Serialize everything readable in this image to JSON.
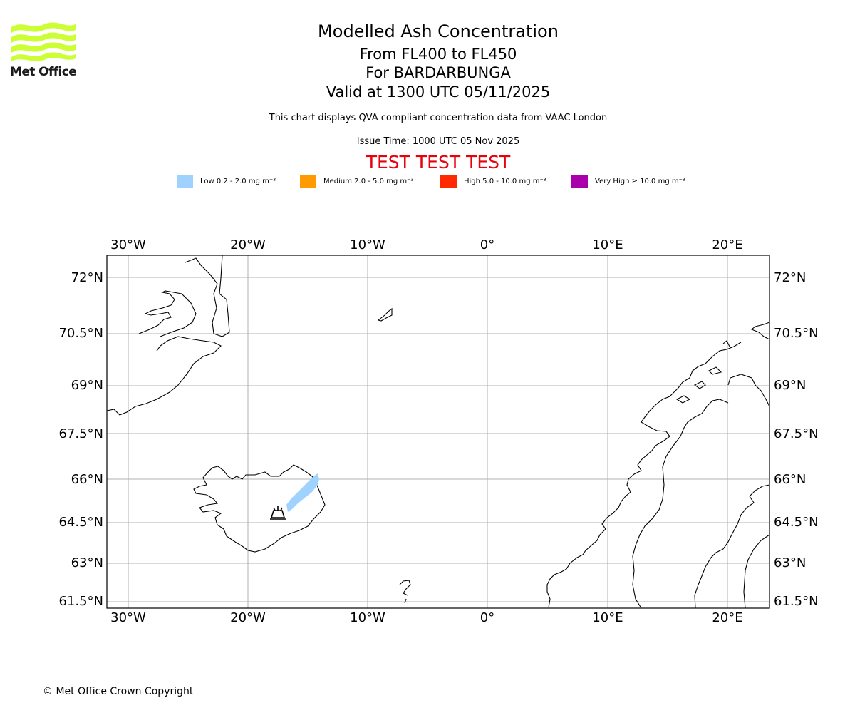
{
  "logo": {
    "text": "Met Office",
    "icon": "met-office-wave-logo"
  },
  "title": {
    "main": "Modelled Ash Concentration",
    "levels": "From FL400 to FL450",
    "volcano": "For BARDARBUNGA",
    "valid": "Valid at 1300 UTC 05/11/2025"
  },
  "subtitle": "This chart displays QVA compliant concentration data from VAAC London",
  "issue_time": "Issue Time: 1000 UTC 05 Nov 2025",
  "test_banner": "TEST TEST TEST",
  "legend": [
    {
      "label": "Low 0.2 - 2.0 mg m⁻³",
      "color": "#a0d2ff"
    },
    {
      "label": "Medium 2.0 - 5.0 mg m⁻³",
      "color": "#ff9a00"
    },
    {
      "label": "High 5.0 - 10.0 mg m⁻³",
      "color": "#ff2a00"
    },
    {
      "label": "Very High ≥ 10.0 mg m⁻³",
      "color": "#aa00aa"
    }
  ],
  "map": {
    "lon_ticks": [
      "30°W",
      "20°W",
      "10°W",
      "0°",
      "10°E",
      "20°E"
    ],
    "lat_ticks": [
      "72°N",
      "70.5°N",
      "69°N",
      "67.5°N",
      "66°N",
      "64.5°N",
      "63°N",
      "61.5°N"
    ],
    "volcano_marker": "volcano-icon",
    "ash_level": "Low"
  },
  "copyright": "© Met Office Crown Copyright"
}
